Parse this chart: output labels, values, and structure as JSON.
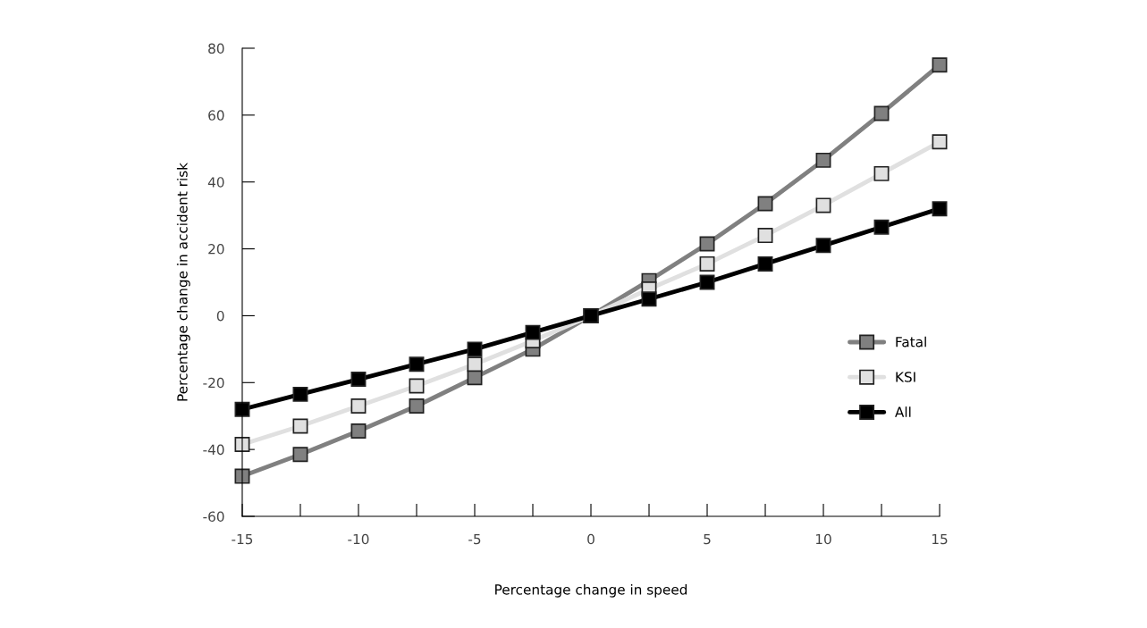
{
  "chart_data": {
    "type": "line",
    "xlabel": "Percentage change in speed",
    "ylabel": "Percentage change in accident risk",
    "x": [
      -15,
      -12.5,
      -10,
      -7.5,
      -5,
      -2.5,
      0,
      2.5,
      5,
      7.5,
      10,
      12.5,
      15
    ],
    "series": [
      {
        "name": "Fatal",
        "color": "#808080",
        "values": [
          -48,
          -41.5,
          -34.5,
          -27,
          -18.5,
          -10,
          0,
          10.5,
          21.5,
          33.5,
          46.5,
          60.5,
          75
        ]
      },
      {
        "name": "KSI",
        "color": "#e0e0e0",
        "values": [
          -38.5,
          -33,
          -27,
          -21,
          -14.5,
          -7.5,
          0,
          8,
          15.5,
          24,
          33,
          42.5,
          52
        ]
      },
      {
        "name": "All",
        "color": "#000000",
        "values": [
          -28,
          -23.5,
          -19,
          -14.5,
          -10,
          -5,
          0,
          5,
          10,
          15.5,
          21,
          26.5,
          32
        ]
      }
    ],
    "xlim": [
      -15,
      15
    ],
    "ylim": [
      -60,
      80
    ],
    "xticks": [
      -15,
      {
        "value": -12.5,
        "label": null
      },
      -10,
      {
        "value": -7.5,
        "label": null
      },
      -5,
      {
        "value": -2.5,
        "label": null
      },
      0,
      {
        "value": 2.5,
        "label": null
      },
      5,
      {
        "value": 7.5,
        "label": null
      },
      10,
      {
        "value": 12.5,
        "label": null
      },
      15
    ],
    "yticks": [
      -60,
      -40,
      -20,
      0,
      20,
      40,
      60,
      80
    ],
    "marker": "square",
    "line_style": "solid",
    "grid": false,
    "legend": "bottom right"
  }
}
